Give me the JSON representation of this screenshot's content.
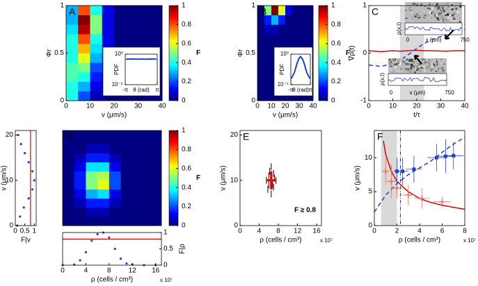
{
  "chart_data": [
    {
      "type": "heatmap",
      "label": "A",
      "xlabel": "v (μm/s)",
      "ylabel": "Φr",
      "colormap": "jet",
      "x": [
        2.5,
        7.5,
        12.5,
        17.5,
        22.5,
        27.5,
        32.5,
        37.5
      ],
      "y": [
        0.05,
        0.15,
        0.25,
        0.35,
        0.45,
        0.55,
        0.65,
        0.75,
        0.85,
        0.95
      ],
      "z": [
        [
          0.4,
          0.2,
          0.05,
          0,
          0,
          0,
          0,
          0
        ],
        [
          0.4,
          0.3,
          0.1,
          0,
          0,
          0,
          0,
          0
        ],
        [
          0.45,
          0.4,
          0.15,
          0,
          0,
          0,
          0,
          0
        ],
        [
          0.45,
          0.5,
          0.2,
          0.05,
          0,
          0,
          0,
          0
        ],
        [
          0.4,
          0.6,
          0.3,
          0.05,
          0,
          0,
          0,
          0
        ],
        [
          0.4,
          0.7,
          0.35,
          0.1,
          0,
          0,
          0,
          0
        ],
        [
          0.4,
          0.8,
          0.4,
          0.1,
          0,
          0,
          0,
          0
        ],
        [
          0.35,
          0.95,
          0.5,
          0.1,
          0,
          0,
          0,
          0
        ],
        [
          0.3,
          1,
          0.5,
          0.1,
          0,
          0,
          0,
          0
        ],
        [
          0.3,
          0.8,
          0.4,
          0.1,
          0,
          0,
          0,
          0
        ]
      ],
      "xlim": [
        0,
        40
      ],
      "ylim": [
        0,
        1
      ],
      "xticks": [
        0,
        10,
        20,
        30,
        40
      ],
      "yticks": [
        0,
        0.5,
        1
      ],
      "colorbar": {
        "label": "F",
        "lim": [
          0,
          1
        ],
        "ticks": [
          0,
          0.2,
          0.4,
          0.6,
          0.8,
          1
        ]
      },
      "inset": {
        "type": "line",
        "xlabel": "θ (rad)",
        "ylabel": "PDF",
        "log_y": true,
        "color": "#1f3fcf",
        "x": [
          -3,
          -2,
          -1,
          0,
          1,
          2,
          3
        ],
        "values": [
          0.15,
          0.16,
          0.15,
          0.16,
          0.15,
          0.16,
          0.15
        ],
        "xlim": [
          -3.14159,
          3.14159
        ],
        "ylim": [
          1e-05,
          1
        ],
        "xticks": [
          {
            "value": -3.14159,
            "label": "-π"
          },
          {
            "value": 3.14159,
            "label": "π"
          }
        ],
        "yticks": [
          {
            "value": 1,
            "label": "10⁰"
          },
          {
            "value": 1e-05,
            "label": "10⁻⁵"
          }
        ]
      }
    },
    {
      "type": "heatmap",
      "label": "B",
      "xlabel": "v (μm/s)",
      "ylabel": "Φr",
      "colormap": "jet",
      "x": [
        2.5,
        7.5,
        12.5,
        17.5,
        22.5,
        27.5,
        32.5,
        37.5
      ],
      "y": [
        0.05,
        0.15,
        0.25,
        0.35,
        0.45,
        0.55,
        0.65,
        0.75,
        0.85,
        0.95
      ],
      "z": [
        [
          0,
          0,
          0,
          0,
          0,
          0,
          0,
          0
        ],
        [
          0,
          0,
          0,
          0,
          0,
          0,
          0,
          0
        ],
        [
          0,
          0,
          0,
          0,
          0,
          0,
          0,
          0
        ],
        [
          0,
          0,
          0,
          0,
          0,
          0,
          0,
          0
        ],
        [
          0,
          0,
          0,
          0,
          0,
          0,
          0,
          0
        ],
        [
          0,
          0,
          0,
          0,
          0,
          0,
          0,
          0
        ],
        [
          0,
          0,
          0,
          0,
          0,
          0,
          0,
          0
        ],
        [
          0,
          0.05,
          0.05,
          0,
          0,
          0,
          0,
          0
        ],
        [
          0,
          0.15,
          0.3,
          0.15,
          0,
          0,
          0,
          0
        ],
        [
          0,
          0.5,
          1,
          0.6,
          0.1,
          0,
          0,
          0
        ]
      ],
      "xlim": [
        0,
        40
      ],
      "ylim": [
        0,
        1
      ],
      "xticks": [
        0,
        10,
        20,
        30,
        40
      ],
      "yticks": [
        0,
        0.5,
        1
      ],
      "colorbar": {
        "label": "F",
        "lim": [
          0,
          1
        ],
        "ticks": [
          0,
          0.2,
          0.4,
          0.6,
          0.8,
          1
        ]
      },
      "inset": {
        "type": "line",
        "xlabel": "θ (rad)",
        "ylabel": "PDF",
        "log_y": true,
        "color": "#1f3fcf",
        "x": [
          -3,
          -2,
          -1,
          -0.5,
          0,
          0.5,
          1,
          2,
          3
        ],
        "values": [
          0.0001,
          0.001,
          0.05,
          0.2,
          0.4,
          0.2,
          0.05,
          0.001,
          0.0001
        ],
        "xlim": [
          -3.14159,
          3.14159
        ],
        "ylim": [
          1e-05,
          1
        ],
        "xticks": [
          {
            "value": -3.14159,
            "label": "-π"
          },
          {
            "value": 3.14159,
            "label": "π"
          }
        ],
        "yticks": [
          {
            "value": 1,
            "label": "10⁰"
          },
          {
            "value": 1e-05,
            "label": "10⁻⁵"
          }
        ]
      }
    },
    {
      "type": "line",
      "label": "C",
      "xlabel": "t/τ",
      "ylabel": "∇ρ(t)",
      "x": [
        0,
        5,
        10,
        13,
        16,
        20,
        23,
        27,
        32,
        36,
        40
      ],
      "series": [
        {
          "color": "#e00000",
          "values": [
            0.05,
            0.03,
            0.05,
            0.04,
            0.05,
            0.06,
            0.05,
            0.05,
            0.04,
            0.05,
            0.05
          ]
        },
        {
          "color": "#1f3fcf",
          "dash": true,
          "values": [
            -0.25,
            -0.28,
            -0.22,
            -0.15,
            -0.05,
            0.1,
            0.2,
            0.3,
            0.38,
            0.45,
            0.5
          ]
        }
      ],
      "span": [
        13,
        23
      ],
      "xlim": [
        0,
        40
      ],
      "ylim": [
        -1,
        1
      ],
      "xticks": [
        0,
        10,
        20,
        30,
        40
      ],
      "yticks": [
        -1,
        0,
        1
      ],
      "inset_labels": {
        "ylabel": "ρ(x,t)",
        "xlabel": "x (μm)",
        "xstart": "0",
        "xend": "750"
      }
    },
    {
      "type": "scatter",
      "xlabel": "F|v",
      "ylabel": "v (μm/s)",
      "color": "#1f3fcf",
      "x": [
        0.1,
        0.25,
        0.45,
        0.7,
        0.9,
        1,
        0.9,
        0.7,
        0.5,
        0.3,
        0.15
      ],
      "y": [
        0,
        2,
        4,
        6,
        8,
        10,
        12,
        14,
        16,
        18,
        20
      ],
      "vline": 0.8,
      "line_color": "#e00000",
      "xlim": [
        0,
        1.1
      ],
      "ylim": [
        0,
        21
      ],
      "xticks": [
        0,
        0.5,
        1
      ],
      "yticks": [
        0,
        10,
        20
      ]
    },
    {
      "type": "heatmap",
      "label": "D",
      "colormap": "jet",
      "x": [
        1,
        3,
        5,
        7,
        9,
        11,
        13,
        15
      ],
      "y": [
        1,
        3,
        5,
        7,
        9,
        11,
        13,
        15,
        17,
        19
      ],
      "z": [
        [
          0,
          0,
          0,
          0,
          0,
          0,
          0,
          0
        ],
        [
          0,
          0,
          0.05,
          0.05,
          0,
          0,
          0,
          0
        ],
        [
          0,
          0.05,
          0.15,
          0.15,
          0.05,
          0,
          0,
          0
        ],
        [
          0,
          0.1,
          0.3,
          0.35,
          0.1,
          0,
          0,
          0
        ],
        [
          0,
          0.15,
          0.5,
          0.6,
          0.2,
          0,
          0,
          0
        ],
        [
          0,
          0.15,
          0.5,
          0.55,
          0.2,
          0,
          0,
          0
        ],
        [
          0,
          0.1,
          0.35,
          0.35,
          0.1,
          0,
          0,
          0
        ],
        [
          0,
          0.05,
          0.15,
          0.15,
          0.05,
          0,
          0,
          0
        ],
        [
          0,
          0,
          0.05,
          0.05,
          0,
          0,
          0,
          0
        ],
        [
          0,
          0,
          0,
          0,
          0,
          0,
          0,
          0
        ]
      ],
      "xlim": [
        0,
        17
      ],
      "ylim": [
        0,
        21
      ],
      "colorbar": {
        "label": "F",
        "lim": [
          0,
          1
        ],
        "ticks": [
          0,
          0.2,
          0.4,
          0.6,
          0.8,
          1
        ]
      }
    },
    {
      "type": "scatter",
      "xlabel": "ρ (cells / cm³)",
      "ylabel": "F|ρ",
      "yaxis_side": "right",
      "x_multiplier": "x 10⁷",
      "color": "#1f3fcf",
      "x": [
        0,
        2,
        3,
        4,
        5,
        6,
        7,
        8,
        9,
        10,
        11,
        12,
        14,
        16
      ],
      "y": [
        0,
        0.02,
        0.15,
        0.4,
        0.75,
        0.95,
        1,
        0.85,
        0.5,
        0.2,
        0.05,
        0.02,
        0,
        0
      ],
      "hline": 0.8,
      "line_color": "#e00000",
      "xlim": [
        0,
        17
      ],
      "ylim": [
        0,
        1
      ],
      "xticks": [
        0,
        4,
        8,
        12,
        16
      ],
      "yticks": [
        0,
        0.5,
        1
      ]
    },
    {
      "type": "scatter",
      "label": "E",
      "marker": "dash",
      "xlabel": "ρ (cells / cm³)",
      "ylabel": "v (μm/s)",
      "x_multiplier": "x 10⁷",
      "color": "#000000",
      "annotation": "F ≥ 0.8",
      "x": [
        5.5,
        5.8,
        6,
        6,
        6.2,
        6.5,
        6.5,
        6.8,
        7,
        7,
        7.2,
        7.5
      ],
      "y": [
        10,
        8,
        9,
        11,
        12,
        7,
        13,
        9,
        8.5,
        11.5,
        10.5,
        10
      ],
      "cross": {
        "x": 6.5,
        "y": 10,
        "xerr": 1,
        "yerr": 2,
        "color": "#e00000"
      },
      "xlim": [
        0,
        17
      ],
      "ylim": [
        0,
        21
      ],
      "xticks": [
        0,
        4,
        8,
        12,
        16
      ],
      "yticks": [
        0,
        10,
        20
      ]
    },
    {
      "type": "errorbar",
      "label": "F",
      "xlabel": "ρ (cells / cm³)",
      "ylabel": "v (μm/s)",
      "x_multiplier": "x 10⁷",
      "lines": [
        {
          "color": "#e00000",
          "x": [
            0.8,
            1,
            1.5,
            2,
            3,
            4,
            5,
            6,
            7,
            8
          ],
          "values": [
            12.5,
            10.5,
            8,
            6.5,
            5,
            4,
            3.4,
            3,
            2.7,
            2.4
          ]
        },
        {
          "color": "#1f3fcf",
          "dash": true,
          "x": [
            0,
            1,
            2,
            3,
            4,
            5,
            6,
            7,
            8
          ],
          "values": [
            2,
            4.5,
            6.2,
            7.5,
            8.5,
            9.5,
            10.8,
            12,
            13
          ]
        }
      ],
      "points": [
        {
          "color": "#e87060",
          "marker": "plus",
          "x": [
            1,
            1.5,
            2,
            3,
            4.2,
            6
          ],
          "y": [
            8,
            6.5,
            5.5,
            4.5,
            4,
            3.5
          ],
          "xerr": [
            0.3,
            0.4,
            0.5,
            0.6,
            0.7,
            0.8
          ],
          "yerr": [
            2,
            2.5,
            1.5,
            1.5,
            1.5,
            0.8
          ]
        },
        {
          "color": "#1f3fcf",
          "marker": "square",
          "x": [
            2,
            2.5,
            3.5,
            5.5,
            6.3,
            7
          ],
          "y": [
            8,
            8,
            8.3,
            10,
            10.2,
            10.3
          ],
          "xerr": [
            0.3,
            0.5,
            0.7,
            0.8,
            0.9,
            0.9
          ],
          "yerr": [
            2,
            2,
            2,
            2,
            2.5,
            2
          ]
        }
      ],
      "span": [
        0.6,
        2
      ],
      "vline": 2.3,
      "xlim": [
        0,
        8
      ],
      "ylim": [
        0,
        14
      ],
      "xticks": [
        0,
        2,
        4,
        6,
        8
      ],
      "yticks": [
        0,
        5,
        10
      ]
    }
  ]
}
